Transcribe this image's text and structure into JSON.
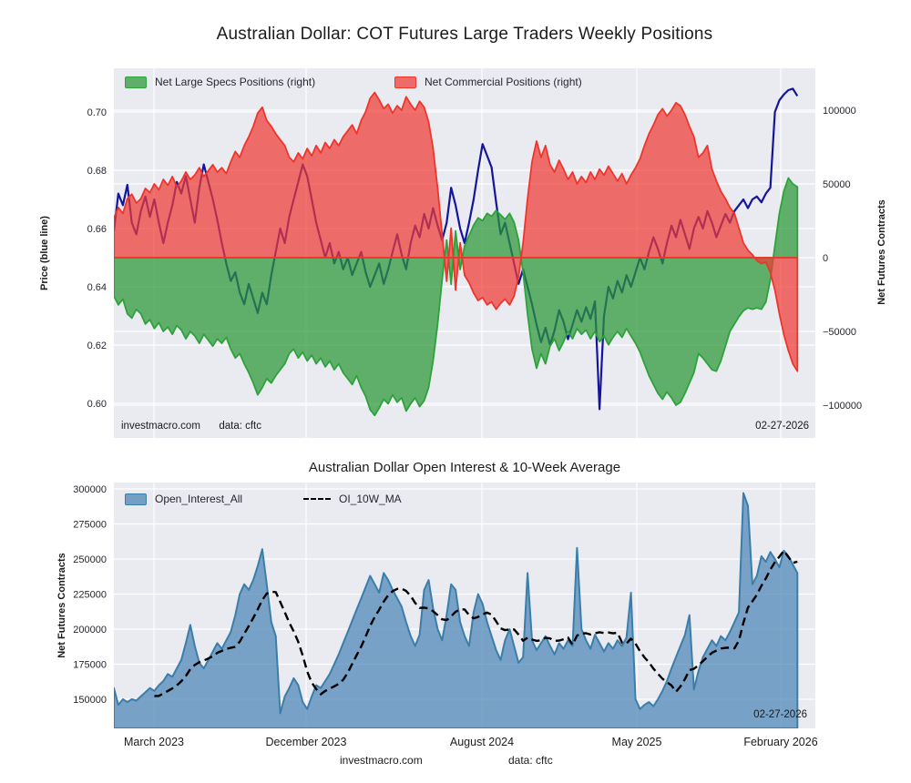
{
  "page": {
    "title": "Australian Dollar: COT Futures Large Traders Weekly Positions"
  },
  "top_chart": {
    "legend": [
      {
        "label": "Net Large Specs Positions (right)",
        "swatch_fill": "#5faf6b",
        "swatch_edge": "#2da23a"
      },
      {
        "label": "Net Commercial Positions (right)",
        "swatch_fill": "#ed6c69",
        "swatch_edge": "#ee352b"
      }
    ],
    "ylabel_left": "Price (blue line)",
    "ylabel_right": "Net Futures Contracts",
    "watermark": "investmacro.com",
    "source": "data: cftc",
    "date_label": "02-27-2026"
  },
  "bottom_chart": {
    "title": "Australian Dollar Open Interest & 10-Week Average",
    "legend": [
      {
        "label": "Open_Interest_All",
        "swatch_fill": "#749fc5",
        "swatch_edge": "#3b7ea9"
      },
      {
        "label": "OI_10W_MA",
        "line_color": "#000000"
      }
    ],
    "ylabel_left": "Net Futures Contracts",
    "date_label": "02-27-2026",
    "footer_watermark": "investmacro.com",
    "footer_source": "data: cftc"
  },
  "colors": {
    "plot_background": "#eaeaf1",
    "grid": "#ffffff",
    "price_line": "#15159b",
    "specs_edge": "#2da23a",
    "specs_fill": "rgba(42,152,56,0.72)",
    "commercial_edge": "#ee352b",
    "commercial_fill": "rgba(239,60,52,0.72)",
    "oi_edge": "#3b7ea9",
    "oi_fill": "rgba(70,130,180,0.70)",
    "ma_line": "#000000"
  },
  "chart_data": [
    {
      "type": "line+area",
      "x_tick_labels": [
        "March 2023",
        "December 2023",
        "August 2024",
        "May 2025",
        "February 2026"
      ],
      "left_axis": {
        "label": "Price (blue line)",
        "ticks": [
          0.7,
          0.68,
          0.66,
          0.64,
          0.62,
          0.6
        ],
        "range": [
          0.588,
          0.715
        ]
      },
      "right_axis": {
        "label": "Net Futures Contracts",
        "ticks": [
          100000,
          50000,
          0,
          -50000,
          -100000
        ],
        "range": [
          -122000,
          128000
        ]
      },
      "series": [
        {
          "name": "Price",
          "axis": "left",
          "kind": "line",
          "values": [
            0.659,
            0.672,
            0.668,
            0.675,
            0.662,
            0.658,
            0.666,
            0.671,
            0.664,
            0.67,
            0.662,
            0.655,
            0.662,
            0.668,
            0.676,
            0.672,
            0.678,
            0.67,
            0.662,
            0.674,
            0.682,
            0.676,
            0.67,
            0.663,
            0.655,
            0.648,
            0.642,
            0.645,
            0.638,
            0.634,
            0.641,
            0.636,
            0.631,
            0.638,
            0.634,
            0.644,
            0.652,
            0.66,
            0.655,
            0.664,
            0.67,
            0.676,
            0.682,
            0.678,
            0.67,
            0.662,
            0.656,
            0.65,
            0.655,
            0.648,
            0.652,
            0.646,
            0.65,
            0.644,
            0.648,
            0.652,
            0.645,
            0.64,
            0.644,
            0.648,
            0.641,
            0.646,
            0.652,
            0.658,
            0.651,
            0.646,
            0.655,
            0.661,
            0.657,
            0.665,
            0.66,
            0.667,
            0.661,
            0.656,
            0.662,
            0.674,
            0.668,
            0.66,
            0.655,
            0.662,
            0.67,
            0.68,
            0.689,
            0.685,
            0.681,
            0.669,
            0.658,
            0.662,
            0.655,
            0.648,
            0.641,
            0.646,
            0.64,
            0.634,
            0.627,
            0.621,
            0.626,
            0.62,
            0.625,
            0.632,
            0.628,
            0.622,
            0.627,
            0.632,
            0.628,
            0.633,
            0.629,
            0.635,
            0.598,
            0.63,
            0.64,
            0.636,
            0.642,
            0.638,
            0.644,
            0.64,
            0.645,
            0.65,
            0.646,
            0.652,
            0.657,
            0.653,
            0.648,
            0.655,
            0.661,
            0.657,
            0.663,
            0.658,
            0.653,
            0.66,
            0.664,
            0.66,
            0.666,
            0.662,
            0.657,
            0.661,
            0.665,
            0.662,
            0.666,
            0.668,
            0.67,
            0.667,
            0.67,
            0.671,
            0.669,
            0.672,
            0.674,
            0.7,
            0.704,
            0.706,
            0.7075,
            0.708,
            0.7055
          ]
        },
        {
          "name": "Net Large Specs Positions",
          "axis": "right",
          "kind": "area",
          "values": [
            -26000,
            -32000,
            -28000,
            -38000,
            -41000,
            -35000,
            -38000,
            -45000,
            -42000,
            -48000,
            -44000,
            -50000,
            -47000,
            -52000,
            -46000,
            -49000,
            -55000,
            -50000,
            -53000,
            -58000,
            -52000,
            -56000,
            -60000,
            -55000,
            -58000,
            -54000,
            -62000,
            -68000,
            -65000,
            -72000,
            -78000,
            -85000,
            -93000,
            -88000,
            -82000,
            -85000,
            -80000,
            -76000,
            -72000,
            -65000,
            -62000,
            -68000,
            -64000,
            -70000,
            -66000,
            -72000,
            -68000,
            -74000,
            -70000,
            -76000,
            -72000,
            -78000,
            -82000,
            -86000,
            -80000,
            -88000,
            -94000,
            -103000,
            -107000,
            -102000,
            -96000,
            -99000,
            -93000,
            -98000,
            -95000,
            -104000,
            -99000,
            -95000,
            -101000,
            -97000,
            -88000,
            -70000,
            -45000,
            -15000,
            12000,
            -18000,
            18000,
            -8000,
            8000,
            15000,
            22000,
            27000,
            25000,
            30000,
            28000,
            32000,
            29000,
            26000,
            30000,
            24000,
            12000,
            -10000,
            -38000,
            -62000,
            -75000,
            -65000,
            -72000,
            -60000,
            -55000,
            -63000,
            -57000,
            -50000,
            -55000,
            -48000,
            -52000,
            -49000,
            -55000,
            -50000,
            -57000,
            -53000,
            -59000,
            -54000,
            -50000,
            -54000,
            -48000,
            -53000,
            -58000,
            -64000,
            -72000,
            -80000,
            -86000,
            -92000,
            -96000,
            -91000,
            -95000,
            -100000,
            -98000,
            -92000,
            -85000,
            -78000,
            -65000,
            -68000,
            -72000,
            -76000,
            -77000,
            -70000,
            -60000,
            -50000,
            -45000,
            -40000,
            -36000,
            -34000,
            -35000,
            -34000,
            -35000,
            -30000,
            -15000,
            8000,
            30000,
            45000,
            54000,
            50000,
            48000
          ]
        },
        {
          "name": "Net Commercial Positions",
          "axis": "right",
          "kind": "area",
          "values": [
            27000,
            34000,
            30000,
            40000,
            43000,
            37000,
            40000,
            47000,
            44000,
            50000,
            46000,
            53000,
            49000,
            55000,
            48000,
            52000,
            58000,
            53000,
            56000,
            61000,
            55000,
            59000,
            63000,
            58000,
            61000,
            57000,
            65000,
            72000,
            68000,
            76000,
            82000,
            89000,
            98000,
            102000,
            93000,
            89000,
            84000,
            80000,
            76000,
            68000,
            65000,
            71000,
            67000,
            74000,
            69000,
            76000,
            71000,
            78000,
            74000,
            80000,
            76000,
            82000,
            86000,
            90000,
            84000,
            93000,
            99000,
            108000,
            112000,
            107000,
            101000,
            104000,
            98000,
            103000,
            100000,
            109000,
            104000,
            100000,
            106000,
            102000,
            92000,
            74000,
            47000,
            16000,
            -16000,
            20000,
            -22000,
            10000,
            -12000,
            -17000,
            -24000,
            -29000,
            -27000,
            -32000,
            -30000,
            -35000,
            -31000,
            -28000,
            -32000,
            -26000,
            -13000,
            10000,
            40000,
            65000,
            79000,
            68000,
            76000,
            63000,
            58000,
            66000,
            60000,
            53000,
            58000,
            50000,
            55000,
            51000,
            58000,
            53000,
            60000,
            56000,
            62000,
            57000,
            52000,
            57000,
            50000,
            56000,
            61000,
            67000,
            76000,
            84000,
            90000,
            97000,
            101000,
            96000,
            100000,
            105000,
            103000,
            97000,
            89000,
            82000,
            68000,
            71000,
            76000,
            60000,
            52000,
            45000,
            40000,
            34000,
            30000,
            20000,
            10000,
            5000,
            2000,
            -2000,
            -4000,
            -3000,
            -10000,
            -22000,
            -38000,
            -52000,
            -63000,
            -72000,
            -77000
          ]
        }
      ],
      "footnote_left": "investmacro.com",
      "footnote_source": "data: cftc",
      "date_label": "02-27-2026"
    },
    {
      "type": "area+line",
      "title": "Australian Dollar Open Interest & 10-Week Average",
      "x_tick_labels": [
        "March 2023",
        "December 2023",
        "August 2024",
        "May 2025",
        "February 2026"
      ],
      "y_axis": {
        "label": "Net Futures Contracts",
        "ticks": [
          300000,
          275000,
          250000,
          225000,
          200000,
          175000,
          150000
        ],
        "range": [
          129000,
          304500
        ]
      },
      "series": [
        {
          "name": "Open_Interest_All",
          "kind": "area",
          "values": [
            158000,
            146000,
            150000,
            148000,
            150000,
            149000,
            152000,
            155000,
            158000,
            156000,
            160000,
            163000,
            168000,
            166000,
            172000,
            178000,
            190000,
            203000,
            188000,
            176000,
            172000,
            178000,
            184000,
            190000,
            186000,
            192000,
            198000,
            210000,
            225000,
            232000,
            228000,
            235000,
            245000,
            257000,
            232000,
            205000,
            195000,
            140000,
            152000,
            158000,
            165000,
            160000,
            148000,
            143000,
            152000,
            160000,
            158000,
            163000,
            168000,
            175000,
            182000,
            190000,
            198000,
            206000,
            214000,
            222000,
            230000,
            238000,
            232000,
            226000,
            240000,
            235000,
            228000,
            222000,
            216000,
            205000,
            195000,
            188000,
            196000,
            228000,
            235000,
            215000,
            200000,
            192000,
            210000,
            232000,
            228000,
            205000,
            195000,
            188000,
            212000,
            225000,
            218000,
            205000,
            195000,
            185000,
            178000,
            192000,
            200000,
            188000,
            176000,
            180000,
            240000,
            192000,
            185000,
            190000,
            195000,
            188000,
            182000,
            190000,
            186000,
            192000,
            188000,
            258000,
            200000,
            192000,
            186000,
            196000,
            190000,
            184000,
            190000,
            186000,
            192000,
            188000,
            194000,
            226000,
            150000,
            143000,
            146000,
            148000,
            145000,
            150000,
            156000,
            163000,
            172000,
            180000,
            188000,
            196000,
            210000,
            157000,
            170000,
            180000,
            186000,
            192000,
            188000,
            195000,
            192000,
            198000,
            205000,
            212000,
            297000,
            288000,
            232000,
            238000,
            252000,
            248000,
            255000,
            250000,
            244000,
            256000,
            252000,
            246000,
            240000
          ]
        },
        {
          "name": "OI_10W_MA",
          "kind": "dashed_line",
          "derived": "10-week trailing moving average of Open_Interest_All",
          "ma_window": 10
        }
      ],
      "date_label": "02-27-2026"
    }
  ]
}
